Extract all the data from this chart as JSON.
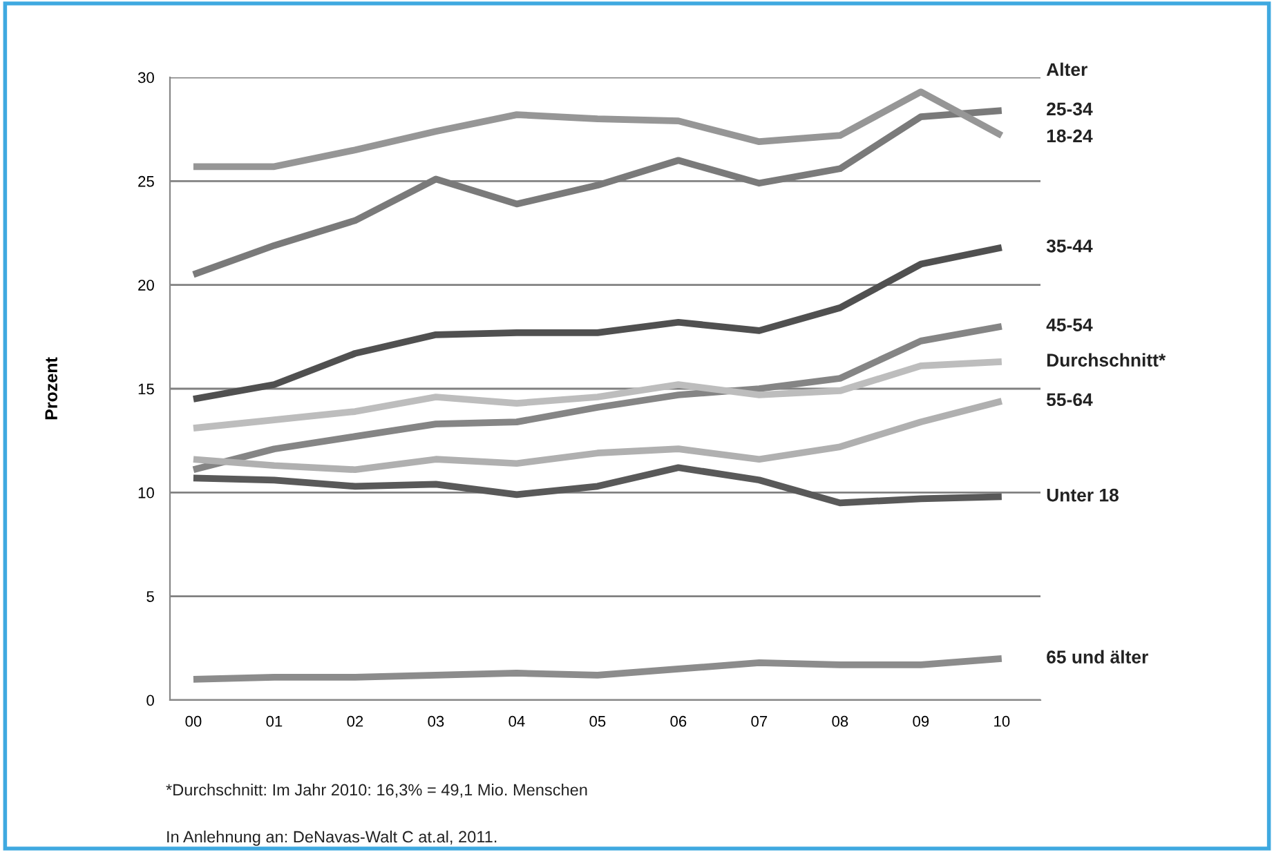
{
  "chart_data": {
    "type": "line",
    "ylabel": "Prozent",
    "legend_title": "Alter",
    "categories": [
      "00",
      "01",
      "02",
      "03",
      "04",
      "05",
      "06",
      "07",
      "08",
      "09",
      "10"
    ],
    "series": [
      {
        "name": "25-34",
        "color": "#7a7a7a",
        "values": [
          20.5,
          21.9,
          23.1,
          25.1,
          23.9,
          24.8,
          26.0,
          24.9,
          25.6,
          28.1,
          28.4
        ]
      },
      {
        "name": "18-24",
        "color": "#969696",
        "values": [
          25.7,
          25.7,
          26.5,
          27.4,
          28.2,
          28.0,
          27.9,
          26.9,
          27.2,
          29.3,
          27.2
        ]
      },
      {
        "name": "35-44",
        "color": "#505050",
        "values": [
          14.5,
          15.2,
          16.7,
          17.6,
          17.7,
          17.7,
          18.2,
          17.8,
          18.9,
          21.0,
          21.8
        ]
      },
      {
        "name": "45-54",
        "color": "#858585",
        "values": [
          11.1,
          12.1,
          12.7,
          13.3,
          13.4,
          14.1,
          14.7,
          15.0,
          15.5,
          17.3,
          18.0
        ]
      },
      {
        "name": "Durchschnitt*",
        "color": "#bdbdbd",
        "values": [
          13.1,
          13.5,
          13.9,
          14.6,
          14.3,
          14.6,
          15.2,
          14.7,
          14.9,
          16.1,
          16.3
        ]
      },
      {
        "name": "55-64",
        "color": "#b0b0b0",
        "values": [
          11.6,
          11.3,
          11.1,
          11.6,
          11.4,
          11.9,
          12.1,
          11.6,
          12.2,
          13.4,
          14.4
        ]
      },
      {
        "name": "Unter 18",
        "color": "#595959",
        "values": [
          10.7,
          10.6,
          10.3,
          10.4,
          9.9,
          10.3,
          11.2,
          10.6,
          9.5,
          9.7,
          9.8
        ]
      },
      {
        "name": "65 und älter",
        "color": "#8c8c8c",
        "values": [
          1.0,
          1.1,
          1.1,
          1.2,
          1.3,
          1.2,
          1.5,
          1.8,
          1.7,
          1.7,
          2.0
        ]
      }
    ],
    "ylim": [
      0,
      30
    ],
    "yticks": [
      0,
      5,
      10,
      15,
      20,
      25,
      30
    ],
    "grid": "y",
    "marker": "none",
    "line_style": "solid",
    "legend": "right",
    "annotations": [
      "*Durchschnitt: Im Jahr 2010: 16,3% = 49,1 Mio. Menschen",
      "In Anlehnung an: DeNavas-Walt C at.al, 2011."
    ]
  }
}
